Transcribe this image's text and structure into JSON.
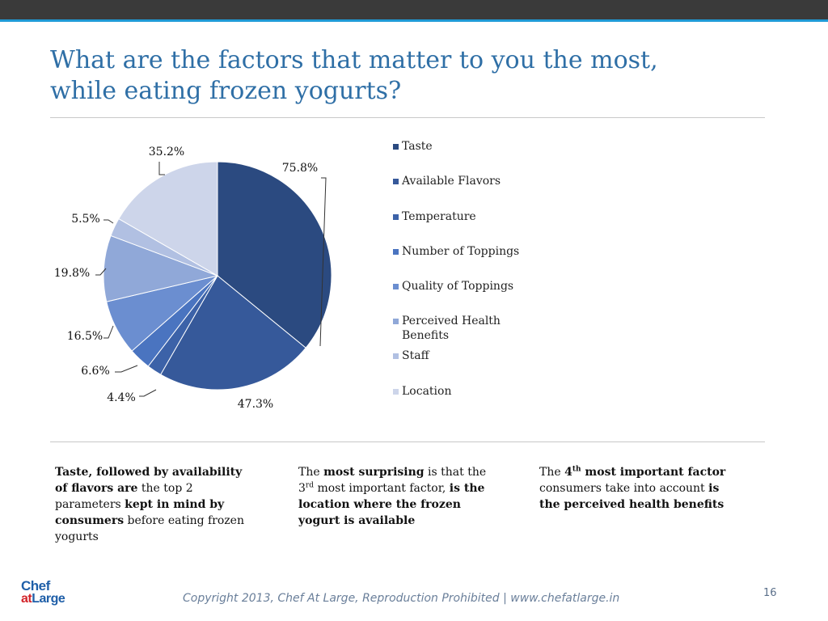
{
  "title": {
    "line1": "What are the factors that matter to you the most,",
    "line2": "while eating frozen yogurts?"
  },
  "chart_data": {
    "type": "pie",
    "title": "",
    "slices": [
      {
        "label": "Taste",
        "value_label": "75.8%",
        "value": 75.8,
        "color": "#2b4a80"
      },
      {
        "label": "Available Flavors",
        "value_label": "47.3%",
        "value": 47.3,
        "color": "#36599a"
      },
      {
        "label": "Temperature",
        "value_label": "4.4%",
        "value": 4.4,
        "color": "#3c62a8"
      },
      {
        "label": "Number of Toppings",
        "value_label": "6.6%",
        "value": 6.6,
        "color": "#4a74c0"
      },
      {
        "label": "Quality of Toppings",
        "value_label": "16.5%",
        "value": 16.5,
        "color": "#6b8ed0"
      },
      {
        "label": "Perceived Health Benefits",
        "value_label": "19.8%",
        "value": 19.8,
        "color": "#90a8d8"
      },
      {
        "label": "Staff",
        "value_label": "5.5%",
        "value": 5.5,
        "color": "#b1c0e2"
      },
      {
        "label": "Location",
        "value_label": "35.2%",
        "value": 35.2,
        "color": "#cdd5ea"
      }
    ],
    "legend_position": "right",
    "start_angle": "12 o'clock",
    "direction": "clockwise"
  },
  "notes": {
    "n1": {
      "a": "Taste, followed by availability of flavors are",
      "b": " the top 2 parameters ",
      "c": "kept in mind by consumers",
      "d": " before eating frozen yogurts"
    },
    "n2": {
      "a": "The ",
      "b": "most surprising",
      "c": " is that the 3",
      "sup": "rd",
      "d": " most important factor, ",
      "e": "is the location where the frozen yogurt is available"
    },
    "n3": {
      "a": "The ",
      "b": "4",
      "sup": "th",
      "c": " most important factor",
      "d": " consumers take into account ",
      "e": "is the perceived health benefits"
    }
  },
  "logo": {
    "chef": "Chef",
    "at": "at",
    "large": "Large"
  },
  "footer": "Copyright 2013, Chef At Large, Reproduction Prohibited | www.chefatlarge.in",
  "page_number": "16",
  "colors": {
    "title": "#2f6fa6",
    "accent_line": "#1f9ad6",
    "top_bar": "#3a3a3a"
  }
}
